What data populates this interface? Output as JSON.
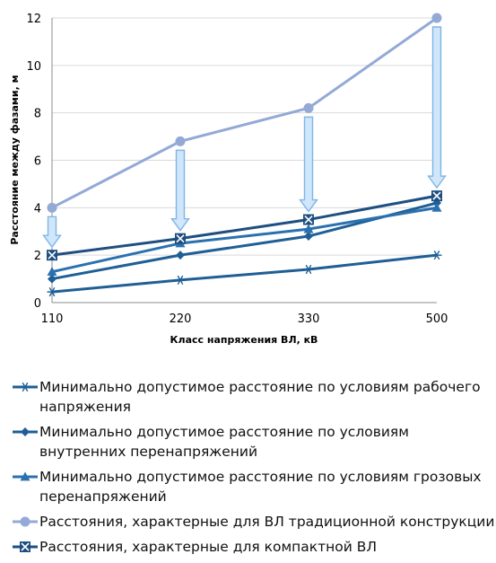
{
  "chart_data": {
    "type": "line",
    "xlabel": "Класс напряжения ВЛ, кВ",
    "ylabel": "Расстояние между фазами, м",
    "categories": [
      "110",
      "220",
      "330",
      "500"
    ],
    "ylim": [
      0,
      12
    ],
    "yticks": [
      "0",
      "2",
      "4",
      "6",
      "8",
      "10",
      "12"
    ],
    "grid": "horizontal",
    "legend_position": "bottom",
    "series": [
      {
        "name": "Минимально допустимое расстояние по условиям рабочего напряжения",
        "marker": "star",
        "color": "#1f5f96",
        "values": [
          0.45,
          0.95,
          1.4,
          2.0
        ]
      },
      {
        "name": "Минимально допустимое расстояние по условиям внутренних перенапряжений",
        "marker": "diamond",
        "color": "#1f5f96",
        "values": [
          1.0,
          2.0,
          2.8,
          4.2
        ]
      },
      {
        "name": "Минимально допустимое расстояние по условиям грозовых перенапряжений",
        "marker": "triangle",
        "color": "#2a71b0",
        "values": [
          1.3,
          2.5,
          3.1,
          4.0
        ]
      },
      {
        "name": "Расстояния, характерные для ВЛ традиционной конструкции",
        "marker": "circle",
        "color": "#93a9d6",
        "values": [
          4.0,
          6.8,
          8.2,
          12.0
        ]
      },
      {
        "name": "Расстояния, характерные для компактной ВЛ",
        "marker": "xsquare",
        "color": "#1f4f80",
        "values": [
          2.0,
          2.7,
          3.5,
          4.5
        ]
      }
    ],
    "annotations": [
      {
        "type": "arrow",
        "category": "110",
        "from": 4.0,
        "to": 2.0
      },
      {
        "type": "arrow",
        "category": "220",
        "from": 6.8,
        "to": 2.7
      },
      {
        "type": "arrow",
        "category": "330",
        "from": 8.2,
        "to": 3.5
      },
      {
        "type": "arrow",
        "category": "500",
        "from": 12.0,
        "to": 4.5
      }
    ]
  },
  "legend": [
    "Минимально допустимое расстояние по условиям рабочего напряжения",
    "Минимально допустимое расстояние по условиям внутренних перенапряжений",
    "Минимально допустимое расстояние по условиям грозовых перенапряжений",
    "Расстояния, характерные для ВЛ традиционной конструкции",
    "Расстояния, характерные для компактной ВЛ"
  ]
}
